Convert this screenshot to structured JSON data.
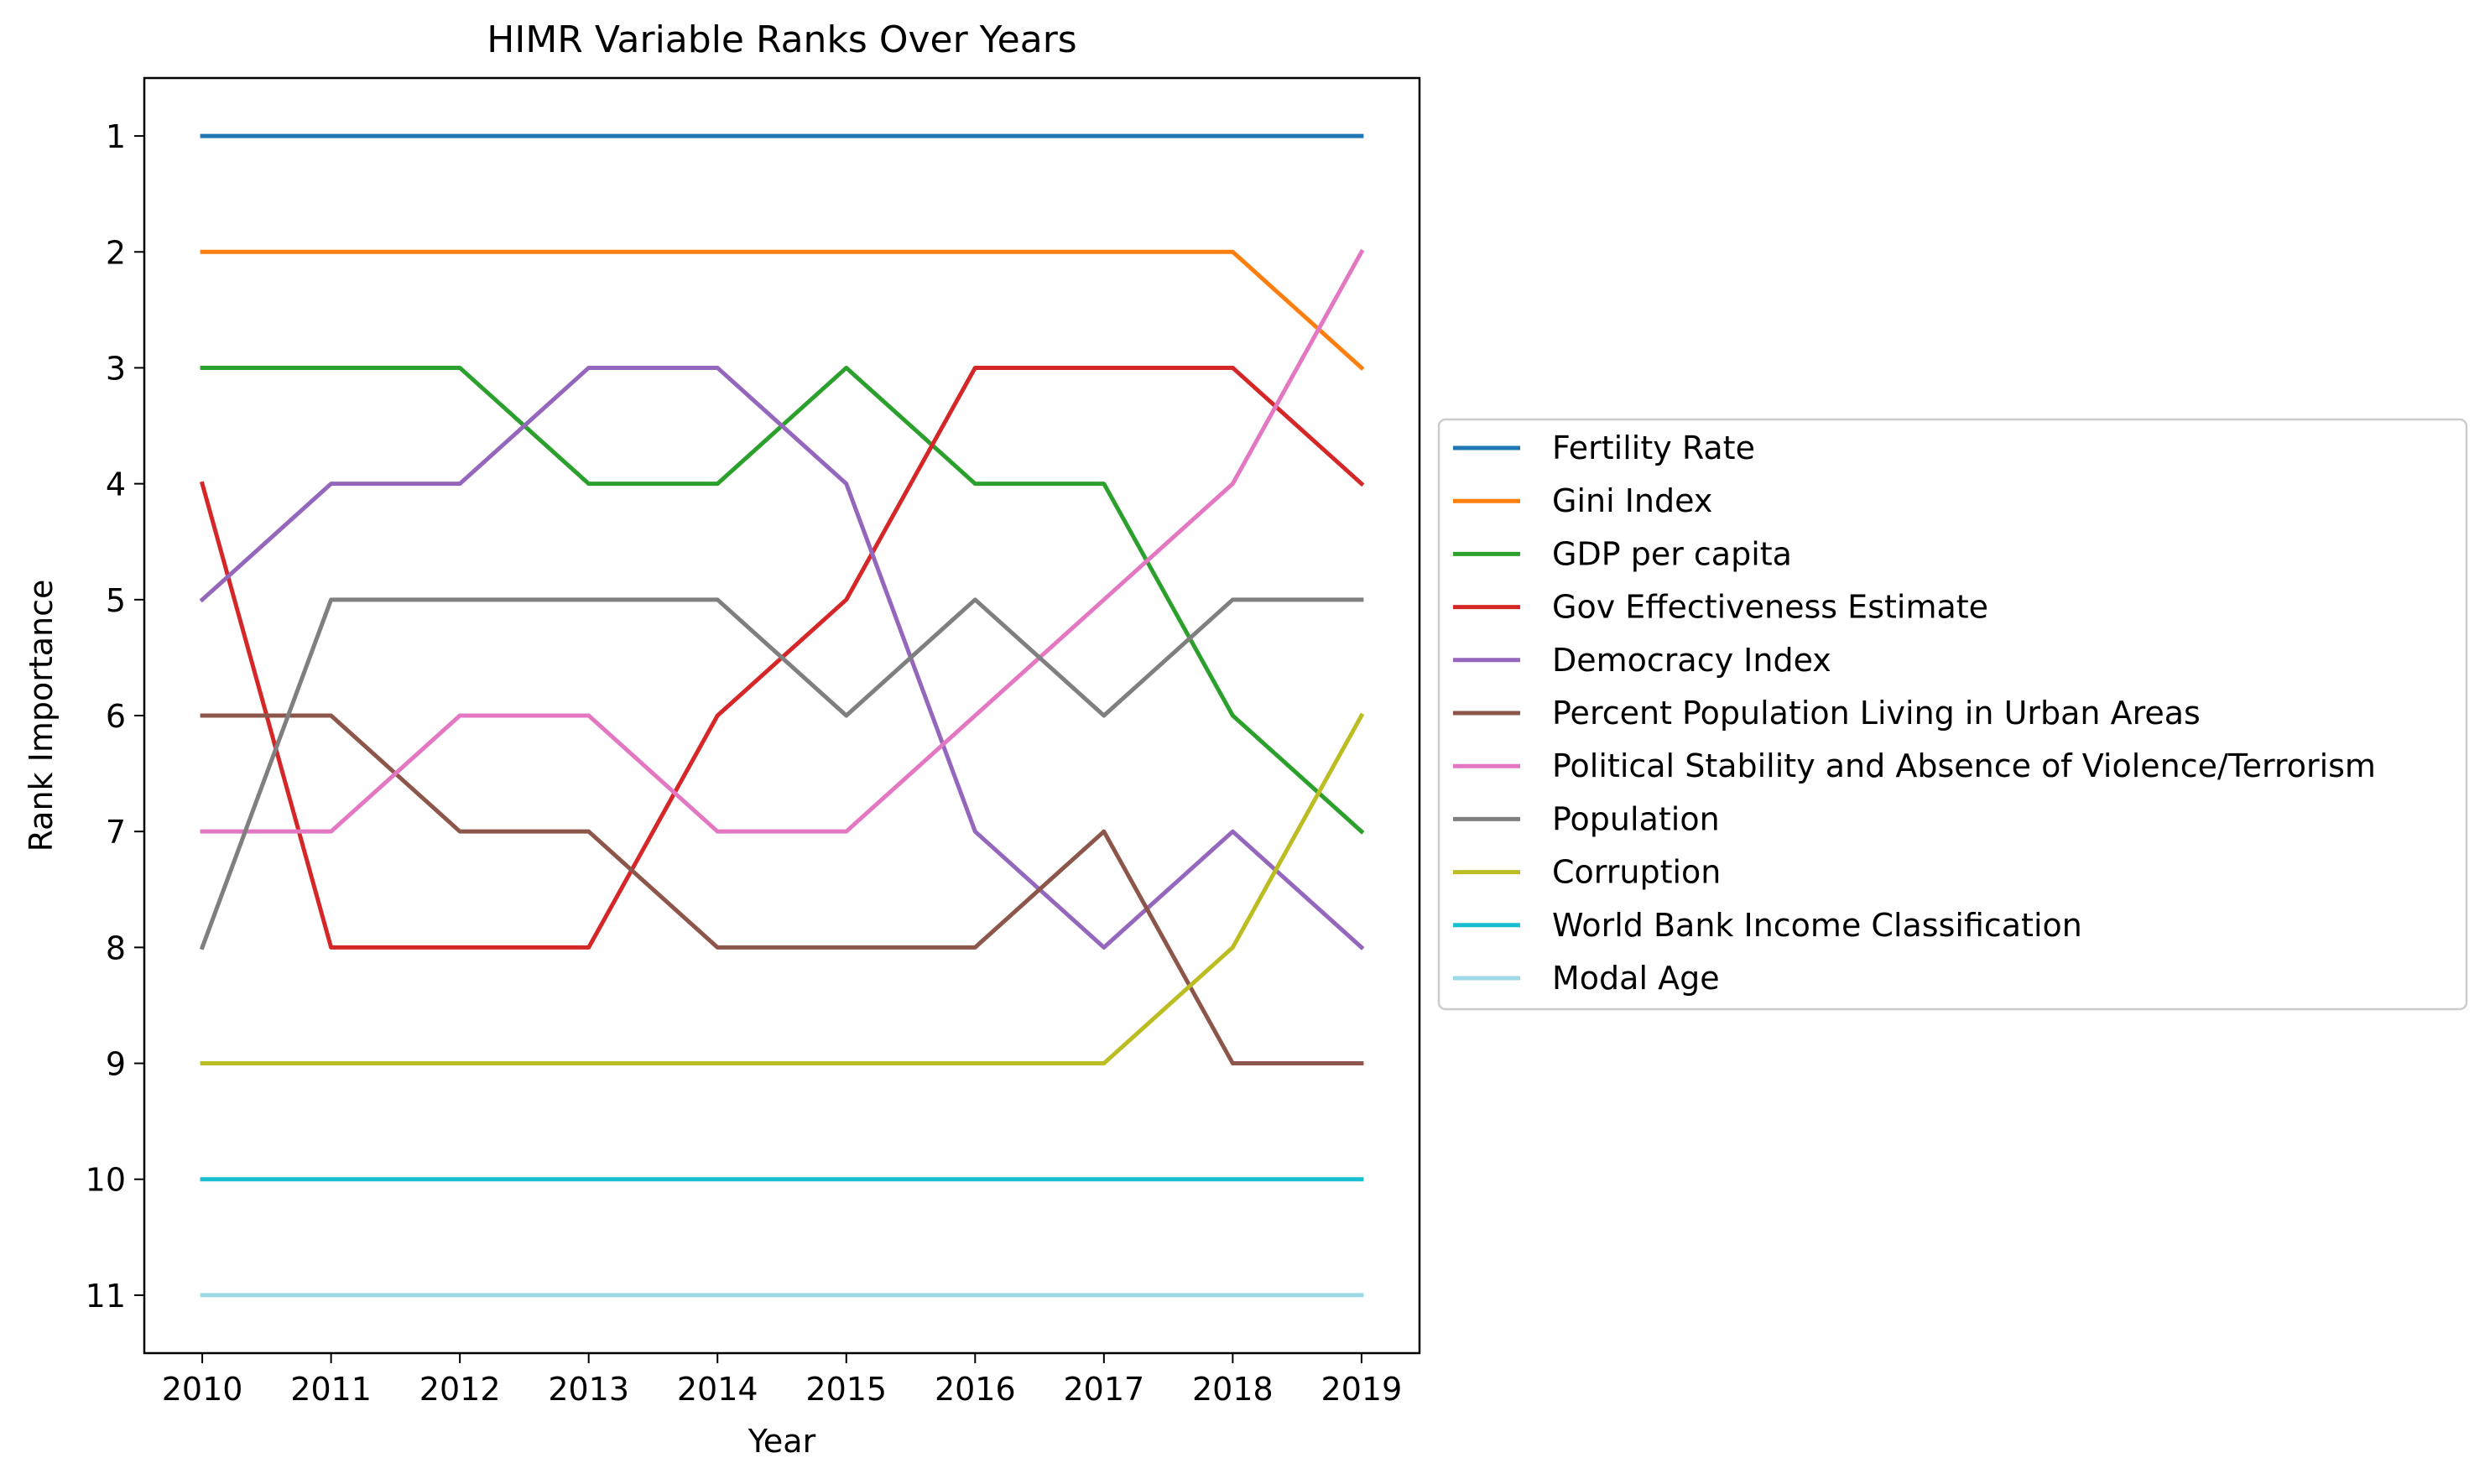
{
  "chart_data": {
    "type": "line",
    "title": "HIMR Variable Ranks Over Years",
    "xlabel": "Year",
    "ylabel": "Rank Importance",
    "x": [
      2010,
      2011,
      2012,
      2013,
      2014,
      2015,
      2016,
      2017,
      2018,
      2019
    ],
    "x_tick_labels": [
      "2010",
      "2011",
      "2012",
      "2013",
      "2014",
      "2015",
      "2016",
      "2017",
      "2018",
      "2019"
    ],
    "y_ticks": [
      1,
      2,
      3,
      4,
      5,
      6,
      7,
      8,
      9,
      10,
      11
    ],
    "y_tick_labels": [
      "1",
      "2",
      "3",
      "4",
      "5",
      "6",
      "7",
      "8",
      "9",
      "10",
      "11"
    ],
    "xlim": [
      2009.55,
      2010.45
    ],
    "ylim": [
      11.5,
      0.5
    ],
    "y_inverted": true,
    "grid": false,
    "legend_position": "right, outside plot",
    "series": [
      {
        "name": "Fertility Rate",
        "color": "#1f77b4",
        "values": [
          1,
          1,
          1,
          1,
          1,
          1,
          1,
          1,
          1,
          1
        ]
      },
      {
        "name": "Gini Index",
        "color": "#ff7f0e",
        "values": [
          2,
          2,
          2,
          2,
          2,
          2,
          2,
          2,
          2,
          3
        ]
      },
      {
        "name": "GDP per capita",
        "color": "#2ca02c",
        "values": [
          3,
          3,
          3,
          4,
          4,
          3,
          4,
          4,
          6,
          7
        ]
      },
      {
        "name": "Gov Effectiveness Estimate",
        "color": "#d62728",
        "values": [
          4,
          8,
          8,
          8,
          6,
          5,
          3,
          3,
          3,
          4
        ]
      },
      {
        "name": "Democracy Index",
        "color": "#9467bd",
        "values": [
          5,
          4,
          4,
          3,
          3,
          4,
          7,
          8,
          7,
          8
        ]
      },
      {
        "name": "Percent Population Living in Urban Areas",
        "color": "#8c564b",
        "values": [
          6,
          6,
          7,
          7,
          8,
          8,
          8,
          7,
          9,
          9
        ]
      },
      {
        "name": "Political Stability and Absence of Violence/Terrorism",
        "color": "#e377c2",
        "values": [
          7,
          7,
          6,
          6,
          7,
          7,
          6,
          5,
          4,
          2
        ]
      },
      {
        "name": "Population",
        "color": "#7f7f7f",
        "values": [
          8,
          5,
          5,
          5,
          5,
          6,
          5,
          6,
          5,
          5
        ]
      },
      {
        "name": "Corruption",
        "color": "#bcbd22",
        "values": [
          9,
          9,
          9,
          9,
          9,
          9,
          9,
          9,
          8,
          6
        ]
      },
      {
        "name": "World Bank Income Classification",
        "color": "#17becf",
        "values": [
          10,
          10,
          10,
          10,
          10,
          10,
          10,
          10,
          10,
          10
        ]
      },
      {
        "name": "Modal Age",
        "color": "#9edae5",
        "values": [
          11,
          11,
          11,
          11,
          11,
          11,
          11,
          11,
          11,
          11
        ]
      }
    ]
  }
}
